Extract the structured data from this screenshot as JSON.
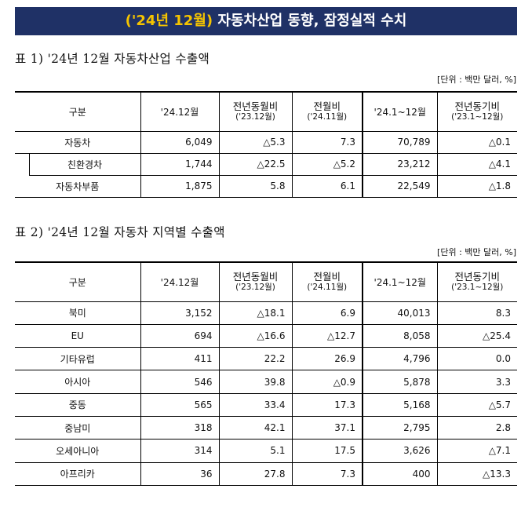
{
  "banner": {
    "highlight": "('24년 12월)",
    "rest": " 자동차산업 동향, 잠정실적 수치"
  },
  "table1": {
    "title": "표 1) '24년 12월 자동차산업 수출액",
    "unit": "[단위 : 백만 달러, %]",
    "headers": {
      "category": "구분",
      "month": "'24.12월",
      "yoy": "전년동월비",
      "yoy_sub": "('23.12월)",
      "mom": "전월비",
      "mom_sub": "('24.11월)",
      "ytd": "'24.1~12월",
      "ytd_yoy": "전년동기비",
      "ytd_yoy_sub": "('23.1~12월)"
    },
    "rows": [
      {
        "name": "자동차",
        "month": "6,049",
        "yoy": "△5.3",
        "mom": "7.3",
        "ytd": "70,789",
        "ytd_yoy": "△0.1"
      },
      {
        "name": "친환경차",
        "month": "1,744",
        "yoy": "△22.5",
        "mom": "△5.2",
        "ytd": "23,212",
        "ytd_yoy": "△4.1"
      },
      {
        "name": "자동차부품",
        "month": "1,875",
        "yoy": "5.8",
        "mom": "6.1",
        "ytd": "22,549",
        "ytd_yoy": "△1.8"
      }
    ]
  },
  "table2": {
    "title": "표 2) '24년 12월 자동차 지역별 수출액",
    "unit": "[단위 : 백만 달러, %]",
    "headers": {
      "category": "구분",
      "month": "'24.12월",
      "yoy": "전년동월비",
      "yoy_sub": "('23.12월)",
      "mom": "전월비",
      "mom_sub": "('24.11월)",
      "ytd": "'24.1~12월",
      "ytd_yoy": "전년동기비",
      "ytd_yoy_sub": "('23.1~12월)"
    },
    "rows": [
      {
        "name": "북미",
        "month": "3,152",
        "yoy": "△18.1",
        "mom": "6.9",
        "ytd": "40,013",
        "ytd_yoy": "8.3"
      },
      {
        "name": "EU",
        "month": "694",
        "yoy": "△16.6",
        "mom": "△12.7",
        "ytd": "8,058",
        "ytd_yoy": "△25.4"
      },
      {
        "name": "기타유럽",
        "month": "411",
        "yoy": "22.2",
        "mom": "26.9",
        "ytd": "4,796",
        "ytd_yoy": "0.0"
      },
      {
        "name": "아시아",
        "month": "546",
        "yoy": "39.8",
        "mom": "△0.9",
        "ytd": "5,878",
        "ytd_yoy": "3.3"
      },
      {
        "name": "중동",
        "month": "565",
        "yoy": "33.4",
        "mom": "17.3",
        "ytd": "5,168",
        "ytd_yoy": "△5.7"
      },
      {
        "name": "중남미",
        "month": "318",
        "yoy": "42.1",
        "mom": "37.1",
        "ytd": "2,795",
        "ytd_yoy": "2.8"
      },
      {
        "name": "오세아니아",
        "month": "314",
        "yoy": "5.1",
        "mom": "17.5",
        "ytd": "3,626",
        "ytd_yoy": "△7.1"
      },
      {
        "name": "아프리카",
        "month": "36",
        "yoy": "27.8",
        "mom": "7.3",
        "ytd": "400",
        "ytd_yoy": "△13.3"
      }
    ]
  }
}
